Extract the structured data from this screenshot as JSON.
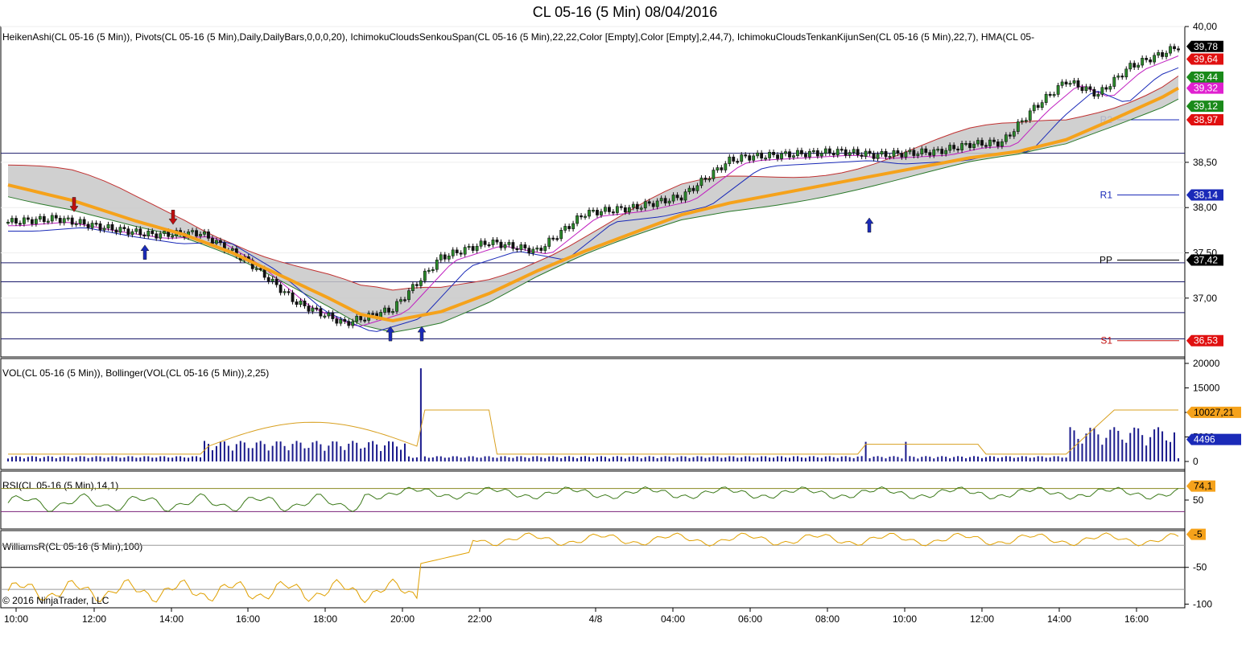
{
  "title": "CL 05-16 (5 Min)  08/04/2016",
  "copyright": "© 2016 NinjaTrader, LLC",
  "colors": {
    "heikin": "#111111",
    "ichimoku_cloud": "#c8c8c8",
    "hma": "#f5a21b",
    "volume": "#1a1a8c",
    "bollinger": "#d8a020",
    "rsi": "#3c7a1a",
    "williams": "#e0a000"
  },
  "chart_data": [
    {
      "type": "line",
      "panel": "price",
      "legend": "HeikenAshi(CL 05-16 (5 Min)),  Pivots(CL 05-16 (5 Min),Daily,DailyBars,0,0,0,20),  IchimokuCloudsSenkouSpan(CL 05-16 (5 Min),22,22,Color [Empty],Color [Empty],2,44,7),  IchimokuCloudsTenkanKijunSen(CL 05-16 (5 Min),22,7),  HMA(CL 05-",
      "ylim": [
        36.35,
        40.0
      ],
      "y_ticks": [
        "40,00",
        "38,50",
        "38,00",
        "37,50",
        "37,00"
      ],
      "y_tick_values": [
        40.0,
        38.5,
        38.0,
        37.5,
        37.0
      ],
      "x_ticks": [
        "10:00",
        "12:00",
        "14:00",
        "16:00",
        "18:00",
        "20:00",
        "22:00",
        "4/8",
        "04:00",
        "06:00",
        "08:00",
        "10:00",
        "12:00",
        "14:00",
        "16:00"
      ],
      "price_x": [
        0,
        3,
        6,
        9,
        12,
        15,
        18,
        21,
        24,
        27,
        30,
        33,
        36,
        39,
        42,
        45
      ],
      "price_y": [
        37.84,
        37.88,
        37.78,
        37.7,
        37.72,
        37.4,
        36.95,
        36.72,
        36.88,
        37.45,
        37.62,
        37.52,
        37.94,
        38.0,
        38.12,
        38.52
      ],
      "price_x2": [
        46,
        48,
        50,
        52,
        54,
        56,
        58,
        60,
        62,
        64,
        66,
        68,
        70,
        72,
        73
      ],
      "price_y2": [
        38.56,
        38.58,
        38.6,
        38.62,
        38.58,
        38.6,
        38.62,
        38.7,
        38.72,
        39.1,
        39.4,
        39.25,
        39.56,
        39.7,
        39.78
      ],
      "hma_x": [
        0,
        4,
        8,
        11,
        14,
        17,
        20,
        22,
        24,
        27,
        30,
        33,
        36,
        39,
        42,
        45,
        48,
        51,
        54,
        57,
        60,
        63,
        66,
        69,
        72,
        73
      ],
      "hma_y": [
        38.25,
        38.08,
        37.85,
        37.7,
        37.5,
        37.25,
        37.0,
        36.82,
        36.75,
        36.85,
        37.05,
        37.3,
        37.52,
        37.72,
        37.92,
        38.05,
        38.15,
        38.25,
        38.35,
        38.45,
        38.55,
        38.62,
        38.75,
        38.98,
        39.22,
        39.32
      ],
      "price_labels": [
        {
          "text": "39,78",
          "value": 39.78,
          "bg": "#000000"
        },
        {
          "text": "39,64",
          "value": 39.64,
          "bg": "#e01010"
        },
        {
          "text": "39,44",
          "value": 39.44,
          "bg": "#1a8a1a"
        },
        {
          "text": "39,32",
          "value": 39.32,
          "bg": "#e020d0"
        },
        {
          "text": "39,12",
          "value": 39.12,
          "bg": "#1a8a1a"
        },
        {
          "text": "38,97",
          "value": 38.97,
          "bg": "#e01010"
        },
        {
          "text": "38,14",
          "value": 38.14,
          "bg": "#1a2ab8"
        },
        {
          "text": "37,42",
          "value": 37.42,
          "bg": "#000000"
        },
        {
          "text": "36,53",
          "value": 36.53,
          "bg": "#e01010"
        }
      ],
      "pivots": [
        {
          "name": "R2",
          "value": 38.97,
          "color": "#1a2ab8"
        },
        {
          "name": "R1",
          "value": 38.14,
          "color": "#1a2ab8"
        },
        {
          "name": "PP",
          "value": 37.42,
          "color": "#000000"
        },
        {
          "name": "S1",
          "value": 36.53,
          "color": "#c01010"
        }
      ]
    },
    {
      "type": "bar",
      "panel": "volume",
      "legend": "VOL(CL 05-16 (5 Min)),  Bollinger(VOL(CL 05-16 (5 Min)),2,25)",
      "ylim": [
        0,
        20000
      ],
      "y_ticks": [
        "20000",
        "15000",
        "10000",
        "5000",
        "0"
      ],
      "y_tick_values": [
        20000,
        15000,
        10000,
        5000,
        0
      ],
      "labels": [
        {
          "text": "10027,21",
          "value": 10027.21,
          "bg": "#f5a21b",
          "fg": "#000000"
        },
        {
          "text": "4496",
          "value": 4496,
          "bg": "#1a2ab8",
          "fg": "#ffffff"
        }
      ]
    },
    {
      "type": "line",
      "panel": "rsi",
      "legend": "RSI(CL 05-16 (5 Min),14,1)",
      "ylim": [
        0,
        100
      ],
      "y_ticks": [
        "50"
      ],
      "y_tick_values": [
        50
      ],
      "label": {
        "text": "74,1",
        "value": 74.1,
        "bg": "#f5a21b"
      }
    },
    {
      "type": "line",
      "panel": "williams",
      "legend": "WilliamsR(CL 05-16 (5 Min),100)",
      "ylim": [
        -105,
        0
      ],
      "y_ticks": [
        "-50",
        "-100"
      ],
      "y_tick_values": [
        -50,
        -100
      ],
      "label": {
        "text": "-5",
        "value": -5,
        "bg": "#f5a21b"
      }
    }
  ]
}
